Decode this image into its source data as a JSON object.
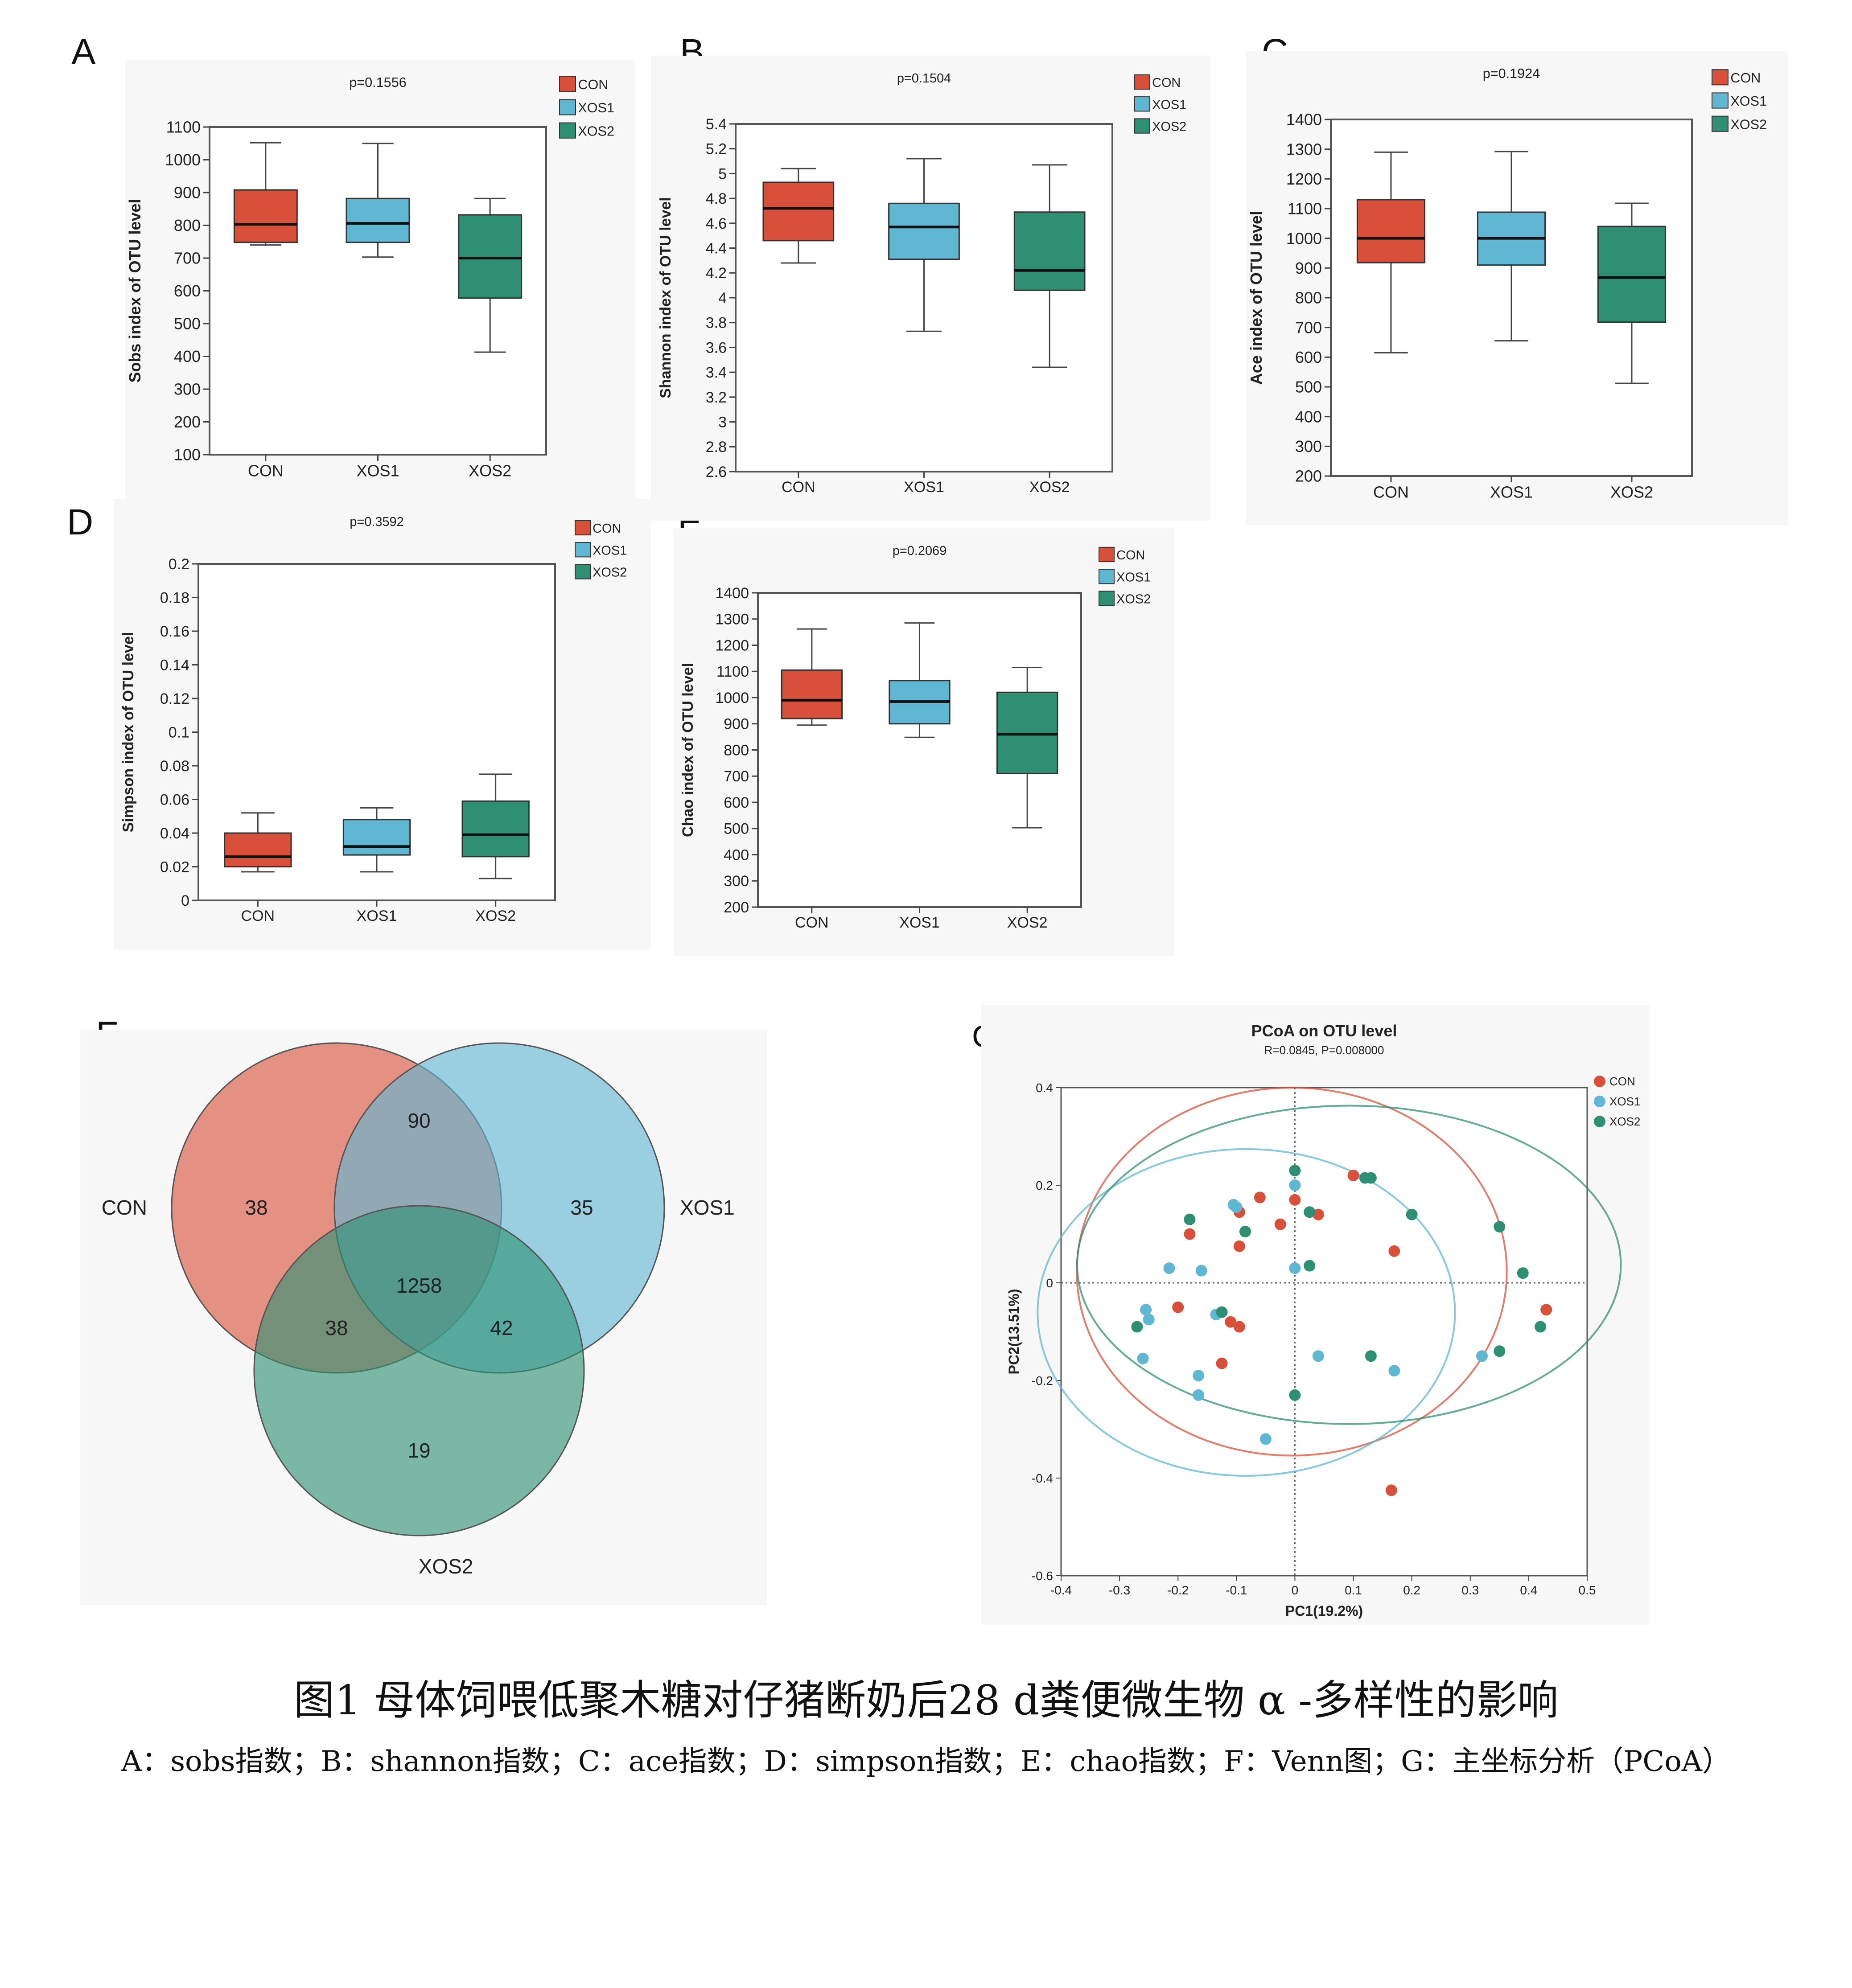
{
  "colors": {
    "CON": "#d9503a",
    "XOS1": "#5fb7d4",
    "XOS2": "#2f8f73"
  },
  "panels": {
    "A": "A",
    "B": "B",
    "C": "C",
    "D": "D",
    "E": "E",
    "F": "F",
    "G": "G"
  },
  "caption": {
    "title": "图1 母体饲喂低聚木糖对仔猪断奶后28 d粪便微生物 α -多样性的影响",
    "subtitle": "A：sobs指数；B：shannon指数；C：ace指数；D：simpson指数；E：chao指数；F：Venn图；G：主坐标分析（PCoA）"
  },
  "chart_data": [
    {
      "panel": "A",
      "type": "box",
      "title": "p=0.1556",
      "ylabel": "Sobs index of OTU level",
      "categories": [
        "CON",
        "XOS1",
        "XOS2"
      ],
      "legend": [
        "CON",
        "XOS1",
        "XOS2"
      ],
      "ylim": [
        100,
        1100
      ],
      "yticks": [
        100,
        200,
        300,
        400,
        500,
        600,
        700,
        800,
        900,
        1000,
        1100
      ],
      "ytick_labels": [
        "100",
        "200",
        "300",
        "400",
        "500",
        "600",
        "700",
        "800",
        "900",
        "1000",
        "1100"
      ],
      "boxes": [
        {
          "name": "CON",
          "min": 740,
          "q1": 748,
          "median": 803,
          "q3": 908,
          "max": 1052
        },
        {
          "name": "XOS1",
          "min": 703,
          "q1": 748,
          "median": 806,
          "q3": 882,
          "max": 1050
        },
        {
          "name": "XOS2",
          "min": 413,
          "q1": 578,
          "median": 700,
          "q3": 832,
          "max": 882
        }
      ]
    },
    {
      "panel": "B",
      "type": "box",
      "title": "p=0.1504",
      "ylabel": "Shannon index of OTU level",
      "categories": [
        "CON",
        "XOS1",
        "XOS2"
      ],
      "legend": [
        "CON",
        "XOS1",
        "XOS2"
      ],
      "ylim": [
        2.6,
        5.4
      ],
      "yticks": [
        2.6,
        2.8,
        3.0,
        3.2,
        3.4,
        3.6,
        3.8,
        4.0,
        4.2,
        4.4,
        4.6,
        4.8,
        5.0,
        5.2,
        5.4
      ],
      "ytick_labels": [
        "2.6",
        "2.8",
        "3",
        "3.2",
        "3.4",
        "3.6",
        "3.8",
        "4",
        "4.2",
        "4.4",
        "4.6",
        "4.8",
        "5",
        "5.2",
        "5.4"
      ],
      "boxes": [
        {
          "name": "CON",
          "min": 4.28,
          "q1": 4.46,
          "median": 4.72,
          "q3": 4.93,
          "max": 5.04
        },
        {
          "name": "XOS1",
          "min": 3.73,
          "q1": 4.31,
          "median": 4.57,
          "q3": 4.76,
          "max": 5.12
        },
        {
          "name": "XOS2",
          "min": 3.44,
          "q1": 4.06,
          "median": 4.22,
          "q3": 4.69,
          "max": 5.07
        }
      ]
    },
    {
      "panel": "C",
      "type": "box",
      "title": "p=0.1924",
      "ylabel": "Ace index of OTU level",
      "categories": [
        "CON",
        "XOS1",
        "XOS2"
      ],
      "legend": [
        "CON",
        "XOS1",
        "XOS2"
      ],
      "ylim": [
        200,
        1400
      ],
      "yticks": [
        200,
        300,
        400,
        500,
        600,
        700,
        800,
        900,
        1000,
        1100,
        1200,
        1300,
        1400
      ],
      "ytick_labels": [
        "200",
        "300",
        "400",
        "500",
        "600",
        "700",
        "800",
        "900",
        "1000",
        "1100",
        "1200",
        "1300",
        "1400"
      ],
      "boxes": [
        {
          "name": "CON",
          "min": 615,
          "q1": 918,
          "median": 1000,
          "q3": 1130,
          "max": 1290
        },
        {
          "name": "XOS1",
          "min": 655,
          "q1": 910,
          "median": 1000,
          "q3": 1088,
          "max": 1292
        },
        {
          "name": "XOS2",
          "min": 512,
          "q1": 718,
          "median": 868,
          "q3": 1040,
          "max": 1118
        }
      ]
    },
    {
      "panel": "D",
      "type": "box",
      "title": "p=0.3592",
      "ylabel": "Simpson index of OTU level",
      "categories": [
        "CON",
        "XOS1",
        "XOS2"
      ],
      "legend": [
        "CON",
        "XOS1",
        "XOS2"
      ],
      "ylim": [
        0,
        0.2
      ],
      "yticks": [
        0,
        0.02,
        0.04,
        0.06,
        0.08,
        0.1,
        0.12,
        0.14,
        0.16,
        0.18,
        0.2
      ],
      "ytick_labels": [
        "0",
        "0.02",
        "0.04",
        "0.06",
        "0.08",
        "0.1",
        "0.12",
        "0.14",
        "0.16",
        "0.18",
        "0.2"
      ],
      "boxes": [
        {
          "name": "CON",
          "min": 0.017,
          "q1": 0.02,
          "median": 0.026,
          "q3": 0.04,
          "max": 0.052
        },
        {
          "name": "XOS1",
          "min": 0.017,
          "q1": 0.027,
          "median": 0.032,
          "q3": 0.048,
          "max": 0.055
        },
        {
          "name": "XOS2",
          "min": 0.013,
          "q1": 0.026,
          "median": 0.039,
          "q3": 0.059,
          "max": 0.075
        }
      ]
    },
    {
      "panel": "E",
      "type": "box",
      "title": "p=0.2069",
      "ylabel": "Chao index of OTU level",
      "categories": [
        "CON",
        "XOS1",
        "XOS2"
      ],
      "legend": [
        "CON",
        "XOS1",
        "XOS2"
      ],
      "ylim": [
        200,
        1400
      ],
      "yticks": [
        200,
        300,
        400,
        500,
        600,
        700,
        800,
        900,
        1000,
        1100,
        1200,
        1300,
        1400
      ],
      "ytick_labels": [
        "200",
        "300",
        "400",
        "500",
        "600",
        "700",
        "800",
        "900",
        "1000",
        "1100",
        "1200",
        "1300",
        "1400"
      ],
      "boxes": [
        {
          "name": "CON",
          "min": 895,
          "q1": 920,
          "median": 990,
          "q3": 1105,
          "max": 1262
        },
        {
          "name": "XOS1",
          "min": 848,
          "q1": 900,
          "median": 985,
          "q3": 1065,
          "max": 1285
        },
        {
          "name": "XOS2",
          "min": 503,
          "q1": 710,
          "median": 860,
          "q3": 1020,
          "max": 1115
        }
      ]
    },
    {
      "panel": "F",
      "type": "venn",
      "sets": [
        "CON",
        "XOS1",
        "XOS2"
      ],
      "regions": {
        "CON_only": "38",
        "XOS1_only": "35",
        "XOS2_only": "19",
        "CON_XOS1": "90",
        "CON_XOS2": "38",
        "XOS1_XOS2": "42",
        "all": "1258"
      }
    },
    {
      "panel": "G",
      "type": "scatter",
      "title": "PCoA on OTU level",
      "subtitle": "R=0.0845, P=0.008000",
      "xlabel": "PC1(19.2%)",
      "ylabel": "PC2(13.51%)",
      "xlim": [
        -0.4,
        0.5
      ],
      "ylim": [
        -0.6,
        0.4
      ],
      "xticks": [
        -0.4,
        -0.3,
        -0.2,
        -0.1,
        0,
        0.1,
        0.2,
        0.3,
        0.4,
        0.5
      ],
      "xtick_labels": [
        "-0.4",
        "-0.3",
        "-0.2",
        "-0.1",
        "0",
        "0.1",
        "0.2",
        "0.3",
        "0.4",
        "0.5"
      ],
      "yticks": [
        -0.6,
        -0.4,
        -0.2,
        0,
        0.2,
        0.4
      ],
      "ytick_labels": [
        "-0.6",
        "-0.4",
        "-0.2",
        "0",
        "0.2",
        "0.4"
      ],
      "legend": [
        "CON",
        "XOS1",
        "XOS2"
      ],
      "series": [
        {
          "name": "CON",
          "points": [
            [
              -0.2,
              -0.05
            ],
            [
              -0.18,
              0.1
            ],
            [
              -0.125,
              -0.165
            ],
            [
              -0.11,
              -0.08
            ],
            [
              -0.095,
              -0.09
            ],
            [
              -0.095,
              0.075
            ],
            [
              -0.095,
              0.145
            ],
            [
              -0.06,
              0.175
            ],
            [
              -0.025,
              0.12
            ],
            [
              0.0,
              0.17
            ],
            [
              0.04,
              0.14
            ],
            [
              0.1,
              0.22
            ],
            [
              0.17,
              0.065
            ],
            [
              0.43,
              -0.055
            ],
            [
              0.165,
              -0.425
            ]
          ]
        },
        {
          "name": "XOS1",
          "points": [
            [
              -0.26,
              -0.155
            ],
            [
              -0.25,
              -0.075
            ],
            [
              -0.255,
              -0.055
            ],
            [
              -0.215,
              0.03
            ],
            [
              -0.165,
              -0.23
            ],
            [
              -0.165,
              -0.19
            ],
            [
              -0.16,
              0.025
            ],
            [
              -0.135,
              -0.065
            ],
            [
              -0.1,
              0.155
            ],
            [
              -0.105,
              0.16
            ],
            [
              -0.05,
              -0.32
            ],
            [
              0.0,
              0.03
            ],
            [
              0.0,
              0.2
            ],
            [
              0.04,
              -0.15
            ],
            [
              0.17,
              -0.18
            ],
            [
              0.32,
              -0.15
            ]
          ]
        },
        {
          "name": "XOS2",
          "points": [
            [
              -0.27,
              -0.09
            ],
            [
              -0.18,
              0.13
            ],
            [
              -0.125,
              -0.06
            ],
            [
              -0.085,
              0.105
            ],
            [
              0.0,
              0.23
            ],
            [
              0.0,
              -0.23
            ],
            [
              0.025,
              0.145
            ],
            [
              0.025,
              0.035
            ],
            [
              0.12,
              0.215
            ],
            [
              0.13,
              0.215
            ],
            [
              0.13,
              -0.15
            ],
            [
              0.2,
              0.14
            ],
            [
              0.35,
              0.115
            ],
            [
              0.35,
              -0.14
            ],
            [
              0.39,
              0.02
            ],
            [
              0.42,
              -0.09
            ]
          ]
        }
      ]
    }
  ]
}
